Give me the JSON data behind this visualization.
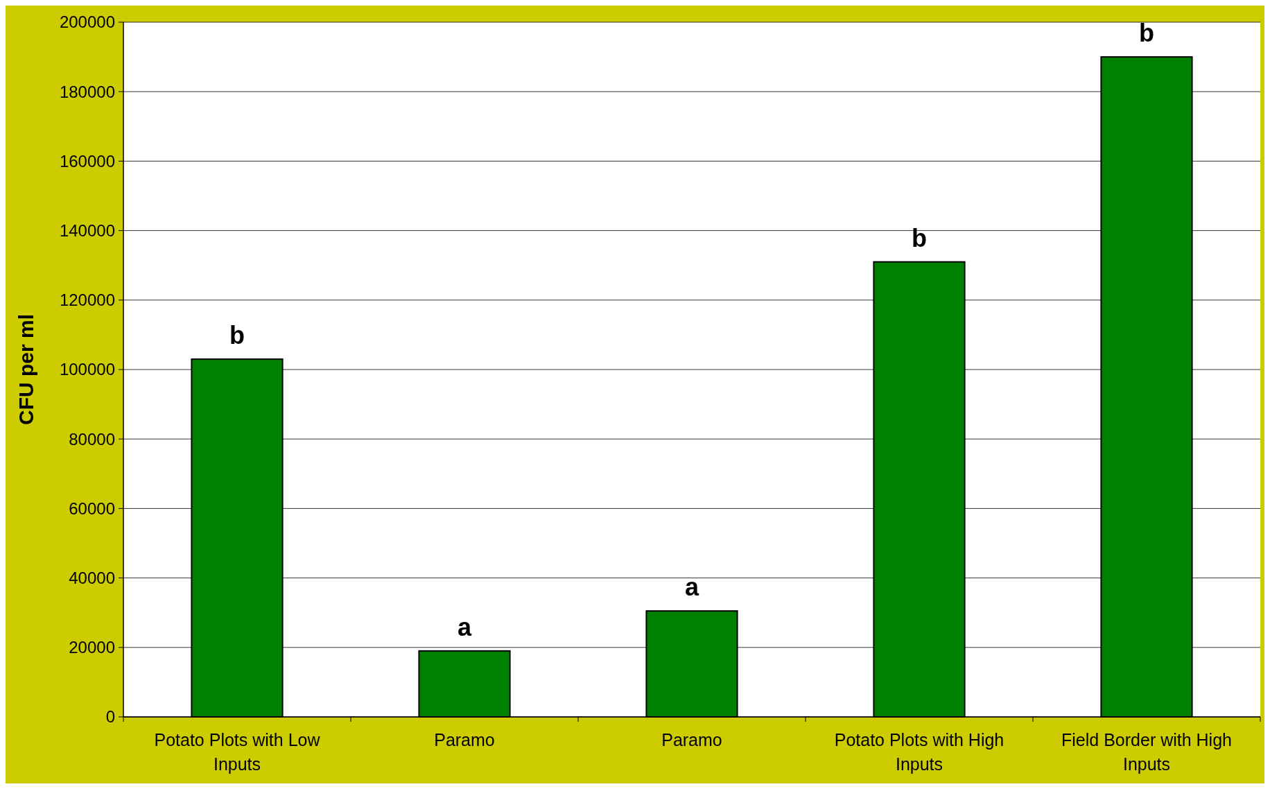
{
  "chart_data": {
    "type": "bar",
    "ylabel": "CFU per ml",
    "categories": [
      "Potato Plots with Low Inputs",
      "Paramo",
      "Paramo",
      "Potato Plots with High Inputs",
      "Field Border with High Inputs"
    ],
    "values": [
      103000,
      19000,
      30500,
      131000,
      190000
    ],
    "color": "#008000",
    "ylim": [
      0,
      200000
    ],
    "yticks": [
      0,
      20000,
      40000,
      60000,
      80000,
      100000,
      120000,
      140000,
      160000,
      180000,
      200000
    ],
    "grid": "y",
    "value_labels": [
      "b",
      "a",
      "a",
      "b",
      "b"
    ]
  }
}
